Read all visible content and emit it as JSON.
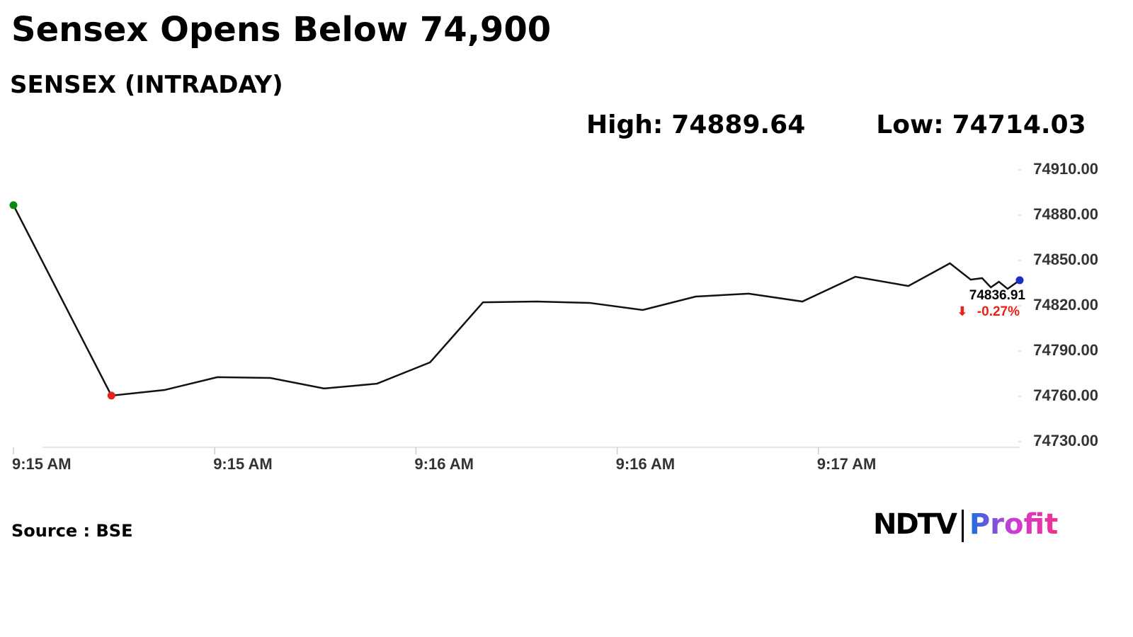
{
  "chart_data": {
    "type": "line",
    "title": "Sensex Opens Below 74,900",
    "subtitle": "SENSEX (INTRADAY)",
    "high_label": "High:",
    "high": 74889.64,
    "low_label": "Low:",
    "low": 74714.03,
    "x": [
      0,
      14.6,
      22.5,
      30.4,
      38.3,
      46.3,
      54.2,
      62.1,
      70.0,
      78.0,
      85.9,
      93.8,
      101.7,
      109.6,
      117.6,
      125.5,
      133.4,
      139.6,
      142.7,
      144.4,
      145.7,
      146.9,
      148.2,
      150
    ],
    "series": [
      {
        "name": "SENSEX",
        "color": "#111111",
        "values": [
          74886.6,
          74760.5,
          74764.2,
          74772.7,
          74772.2,
          74765.2,
          74768.4,
          74782.5,
          74822.3,
          74822.8,
          74821.9,
          74817.2,
          74826.1,
          74828.0,
          74822.8,
          74839.2,
          74833.1,
          74848.1,
          74837.3,
          74838.3,
          74832.2,
          74835.9,
          74831.2,
          74836.91
        ]
      }
    ],
    "markers": [
      {
        "point": 0,
        "color": "#0a8a0a"
      },
      {
        "point": 1,
        "color": "#e8231b"
      },
      {
        "point": 23,
        "color": "#1a2fc4"
      }
    ],
    "change": "-0.27%",
    "change_color": "#e8231b",
    "xlim": [
      0,
      150
    ],
    "xticks": [
      {
        "value": 0,
        "label": "9:15 AM"
      },
      {
        "value": 30,
        "label": "9:15 AM"
      },
      {
        "value": 60,
        "label": "9:16 AM"
      },
      {
        "value": 90,
        "label": "9:16 AM"
      },
      {
        "value": 120,
        "label": "9:17 AM"
      }
    ],
    "ylim": [
      74730,
      74910
    ],
    "yticks": [
      {
        "value": 74730,
        "label": "74730.00"
      },
      {
        "value": 74760,
        "label": "74760.00"
      },
      {
        "value": 74790,
        "label": "74790.00"
      },
      {
        "value": 74820,
        "label": "74820.00"
      },
      {
        "value": 74850,
        "label": "74850.00"
      },
      {
        "value": 74880,
        "label": "74880.00"
      },
      {
        "value": 74910,
        "label": "74910.00"
      }
    ],
    "source": "Source : BSE",
    "logo": {
      "brand": "NDTV",
      "product": "Profit"
    }
  }
}
